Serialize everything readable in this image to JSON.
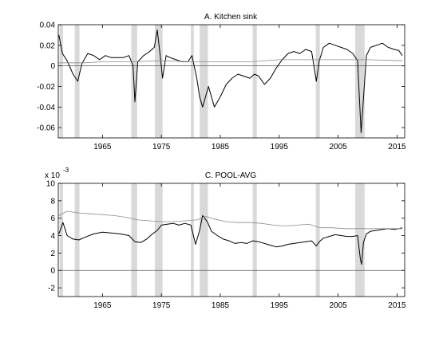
{
  "chart_data": [
    {
      "type": "line",
      "title": "A. Kitchen sink",
      "xlabel": "",
      "ylabel": "",
      "xlim": [
        1957.5,
        2016.3
      ],
      "ylim": [
        -0.07,
        0.04
      ],
      "x_ticks": [
        1965,
        1975,
        1985,
        1995,
        2005,
        2015
      ],
      "y_ticks": [
        -0.06,
        -0.04,
        -0.02,
        0,
        0.02,
        0.04
      ],
      "y_tick_labels": [
        "-0.06",
        "-0.04",
        "-0.02",
        "0",
        "0.02",
        "0.04"
      ],
      "scale_note": "",
      "zero_line": true,
      "recessions": [
        [
          1957.7,
          1958.3
        ],
        [
          1960.3,
          1961.1
        ],
        [
          1969.9,
          1970.9
        ],
        [
          1973.9,
          1975.2
        ],
        [
          1980.0,
          1980.5
        ],
        [
          1981.5,
          1982.9
        ],
        [
          1990.5,
          1991.2
        ],
        [
          2001.2,
          2001.9
        ],
        [
          2007.9,
          2009.5
        ]
      ],
      "series": [
        {
          "style": "thick-black",
          "x": [
            1957.6,
            1958.2,
            1959.0,
            1960.0,
            1960.8,
            1961.5,
            1962.5,
            1963.5,
            1964.5,
            1965.5,
            1966.5,
            1967.5,
            1968.5,
            1969.5,
            1970.2,
            1970.5,
            1971.0,
            1972.0,
            1973.0,
            1973.8,
            1974.3,
            1974.8,
            1975.2,
            1975.8,
            1976.5,
            1977.5,
            1978.5,
            1979.5,
            1980.2,
            1981.0,
            1981.5,
            1982.0,
            1982.5,
            1983.0,
            1984.0,
            1985.0,
            1986.0,
            1987.0,
            1988.0,
            1989.0,
            1990.0,
            1990.8,
            1991.5,
            1992.5,
            1993.5,
            1994.5,
            1995.5,
            1996.5,
            1997.5,
            1998.5,
            1999.5,
            2000.5,
            2001.3,
            2001.8,
            2002.5,
            2003.5,
            2004.5,
            2005.5,
            2006.5,
            2007.5,
            2008.3,
            2008.9,
            2009.2,
            2009.8,
            2010.5,
            2011.5,
            2012.5,
            2013.5,
            2014.5,
            2015.3,
            2015.9
          ],
          "y": [
            0.03,
            0.012,
            0.005,
            -0.008,
            -0.015,
            0.002,
            0.012,
            0.01,
            0.006,
            0.01,
            0.008,
            0.008,
            0.008,
            0.01,
            0.0,
            -0.035,
            0.004,
            0.01,
            0.014,
            0.018,
            0.035,
            0.01,
            -0.012,
            0.01,
            0.008,
            0.006,
            0.004,
            0.004,
            0.01,
            -0.012,
            -0.03,
            -0.04,
            -0.03,
            -0.02,
            -0.04,
            -0.03,
            -0.018,
            -0.012,
            -0.008,
            -0.01,
            -0.012,
            -0.008,
            -0.01,
            -0.018,
            -0.012,
            -0.002,
            0.006,
            0.012,
            0.014,
            0.012,
            0.016,
            0.014,
            -0.015,
            0.005,
            0.018,
            0.022,
            0.02,
            0.018,
            0.016,
            0.012,
            0.005,
            -0.065,
            -0.04,
            0.01,
            0.018,
            0.02,
            0.022,
            0.018,
            0.016,
            0.015,
            0.01
          ]
        },
        {
          "style": "thin-gray",
          "x": [
            1957.6,
            1962.0,
            1965.0,
            1970.0,
            1975.0,
            1980.0,
            1985.0,
            1990.0,
            1995.0,
            2000.0,
            2005.0,
            2010.0,
            2015.9
          ],
          "y": [
            0.003,
            0.003,
            0.004,
            0.004,
            0.005,
            0.004,
            0.004,
            0.004,
            0.006,
            0.006,
            0.006,
            0.006,
            0.005
          ]
        }
      ]
    },
    {
      "type": "line",
      "title": "C. POOL-AVG",
      "xlabel": "",
      "ylabel": "",
      "xlim": [
        1957.5,
        2016.3
      ],
      "ylim": [
        -3,
        10
      ],
      "x_ticks": [
        1965,
        1975,
        1985,
        1995,
        2005,
        2015
      ],
      "y_ticks": [
        -2,
        0,
        2,
        4,
        6,
        8,
        10
      ],
      "y_tick_labels": [
        "-2",
        "0",
        "2",
        "4",
        "6",
        "8",
        "10"
      ],
      "scale_note": "x 10",
      "scale_exponent": "-3",
      "zero_line": true,
      "recessions": [
        [
          1957.7,
          1958.3
        ],
        [
          1960.3,
          1961.1
        ],
        [
          1969.9,
          1970.9
        ],
        [
          1973.9,
          1975.2
        ],
        [
          1980.0,
          1980.5
        ],
        [
          1981.5,
          1982.9
        ],
        [
          1990.5,
          1991.2
        ],
        [
          2001.2,
          2001.9
        ],
        [
          2007.9,
          2009.5
        ]
      ],
      "series": [
        {
          "style": "thick-black",
          "x": [
            1957.6,
            1958.3,
            1959.0,
            1960.0,
            1961.0,
            1962.0,
            1963.5,
            1965.0,
            1966.5,
            1968.0,
            1969.5,
            1970.5,
            1971.5,
            1972.5,
            1973.5,
            1974.3,
            1975.0,
            1976.0,
            1977.0,
            1978.0,
            1979.0,
            1980.0,
            1980.8,
            1981.5,
            1982.0,
            1982.8,
            1983.5,
            1984.5,
            1985.5,
            1986.5,
            1987.5,
            1988.5,
            1989.5,
            1990.5,
            1991.5,
            1992.5,
            1993.5,
            1994.5,
            1995.5,
            1996.5,
            1997.5,
            1998.5,
            1999.5,
            2000.5,
            2001.3,
            2001.8,
            2002.5,
            2003.5,
            2004.5,
            2005.5,
            2006.5,
            2007.5,
            2008.3,
            2008.8,
            2009.0,
            2009.3,
            2009.8,
            2010.5,
            2011.5,
            2012.5,
            2013.5,
            2014.5,
            2015.3,
            2015.9
          ],
          "y": [
            4.2,
            5.5,
            4.0,
            3.6,
            3.5,
            3.8,
            4.2,
            4.4,
            4.3,
            4.2,
            4.0,
            3.3,
            3.2,
            3.6,
            4.2,
            4.6,
            5.2,
            5.3,
            5.4,
            5.2,
            5.4,
            5.2,
            3.0,
            4.6,
            6.3,
            5.6,
            4.5,
            4.0,
            3.6,
            3.4,
            3.1,
            3.2,
            3.1,
            3.4,
            3.3,
            3.1,
            2.9,
            2.7,
            2.8,
            3.0,
            3.1,
            3.2,
            3.3,
            3.4,
            2.8,
            3.3,
            3.7,
            3.9,
            4.1,
            4.0,
            3.9,
            3.9,
            4.0,
            1.2,
            0.7,
            3.2,
            4.2,
            4.5,
            4.6,
            4.7,
            4.8,
            4.7,
            4.8,
            4.9
          ]
        },
        {
          "style": "thin-gray",
          "x": [
            1957.6,
            1959.0,
            1961.0,
            1963.0,
            1965.0,
            1967.0,
            1969.0,
            1971.0,
            1973.0,
            1975.0,
            1977.0,
            1979.0,
            1981.0,
            1982.5,
            1984.0,
            1986.0,
            1988.0,
            1990.0,
            1992.0,
            1994.0,
            1996.0,
            1998.0,
            2000.0,
            2002.0,
            2004.0,
            2006.0,
            2008.0,
            2010.0,
            2012.0,
            2014.0,
            2015.9
          ],
          "y": [
            6.3,
            6.8,
            6.6,
            6.5,
            6.4,
            6.3,
            6.1,
            5.8,
            5.7,
            5.6,
            5.6,
            5.7,
            5.8,
            6.2,
            5.9,
            5.6,
            5.5,
            5.5,
            5.4,
            5.2,
            5.1,
            5.2,
            5.3,
            4.9,
            4.9,
            4.8,
            4.8,
            4.8,
            4.8,
            4.8,
            4.8
          ]
        }
      ]
    }
  ]
}
